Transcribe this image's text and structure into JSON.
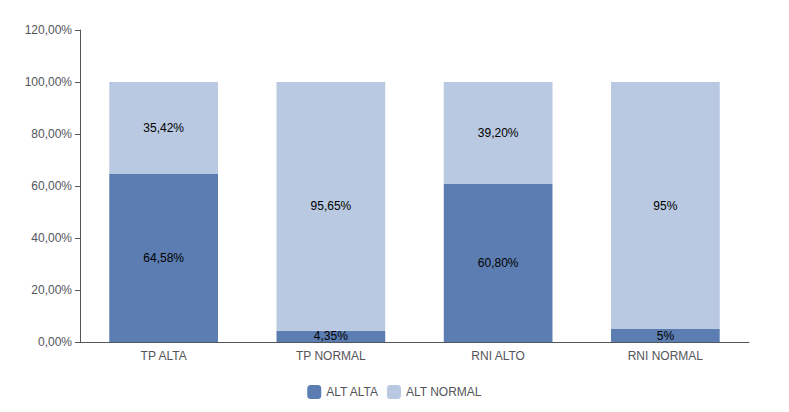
{
  "chart_data": {
    "type": "bar",
    "stacked": true,
    "categories": [
      "TP ALTA",
      "TP NORMAL",
      "RNI ALTO",
      "RNI NORMAL"
    ],
    "series": [
      {
        "name": "ALT ALTA",
        "color": "#5B7DB1",
        "values": [
          64.58,
          4.35,
          60.8,
          5.0
        ],
        "value_labels": [
          "64,58%",
          "4,35%",
          "60,80%",
          "5%"
        ]
      },
      {
        "name": "ALT NORMAL",
        "color": "#B8C9E1",
        "values": [
          35.42,
          95.65,
          39.2,
          95.0
        ],
        "value_labels": [
          "35,42%",
          "95,65%",
          "39,20%",
          "95%"
        ]
      }
    ],
    "ylim": [
      0,
      120
    ],
    "yticks": [
      {
        "value": 0,
        "label": "0,00%"
      },
      {
        "value": 20,
        "label": "20,00%"
      },
      {
        "value": 40,
        "label": "40,00%"
      },
      {
        "value": 60,
        "label": "60,00%"
      },
      {
        "value": 80,
        "label": "80,00%"
      },
      {
        "value": 100,
        "label": "100,00%"
      },
      {
        "value": 120,
        "label": "120,00%"
      }
    ],
    "grid": false,
    "legend": "bottom",
    "data_labels": true
  }
}
